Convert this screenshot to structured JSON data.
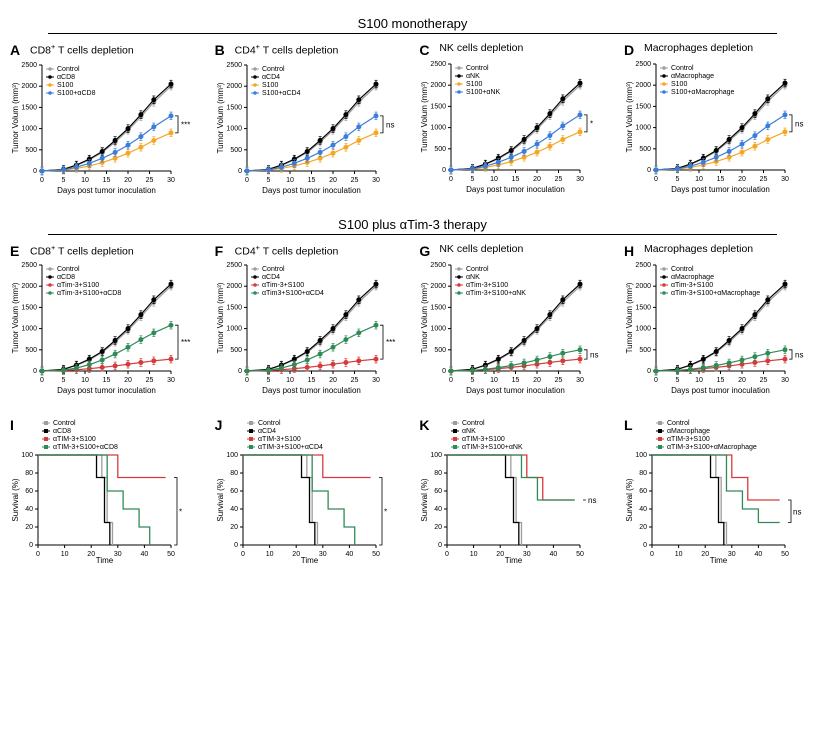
{
  "sections": {
    "top": "S100 monotherapy",
    "mid": "S100 plus αTim-3 therapy"
  },
  "colors": {
    "gray": "#9e9e9e",
    "black": "#000000",
    "orange": "#f5a623",
    "blue": "#3b7dd8",
    "red": "#d63a3a",
    "green": "#2e8b57",
    "bg": "#ffffff",
    "axis": "#000000"
  },
  "tumor_axis": {
    "xlabel": "Days post tumor inoculation",
    "ylabel": "Tumor Volum (mm³)",
    "xlim": [
      0,
      30
    ],
    "xtick_step": 5,
    "ylim": [
      0,
      2500
    ],
    "ytick_step": 500
  },
  "survival_axis": {
    "xlabel": "Time",
    "ylabel": "Survival (%)",
    "xlim": [
      0,
      50
    ],
    "xtick_step": 10,
    "ylim": [
      0,
      100
    ],
    "ytick_step": 20
  },
  "days": [
    0,
    5,
    8,
    11,
    14,
    17,
    20,
    23,
    26,
    30
  ],
  "tumor_curves": {
    "control": [
      0,
      40,
      130,
      260,
      440,
      680,
      960,
      1280,
      1620,
      2000
    ],
    "depl": [
      0,
      40,
      140,
      280,
      460,
      720,
      1000,
      1330,
      1680,
      2050
    ],
    "s100": [
      0,
      20,
      60,
      120,
      200,
      300,
      420,
      560,
      720,
      900
    ],
    "s100_blue": [
      0,
      30,
      90,
      180,
      300,
      440,
      610,
      810,
      1040,
      1300
    ],
    "combo": [
      0,
      10,
      30,
      55,
      85,
      120,
      160,
      200,
      240,
      280
    ],
    "combo_depl_partial": [
      0,
      20,
      70,
      150,
      260,
      400,
      560,
      740,
      900,
      1080
    ],
    "combo_depl_small": [
      0,
      15,
      40,
      80,
      130,
      190,
      260,
      340,
      420,
      500
    ]
  },
  "tumor_err": 90,
  "panels_tumor": [
    {
      "letter": "A",
      "title": "CD8⁺ T cells depletion",
      "legend": [
        [
          "Control",
          "gray"
        ],
        [
          "αCD8",
          "black"
        ],
        [
          "S100",
          "orange"
        ],
        [
          "S100+αCD8",
          "blue"
        ]
      ],
      "series": [
        [
          "control",
          "gray"
        ],
        [
          "depl",
          "black"
        ],
        [
          "s100",
          "orange"
        ],
        [
          "s100_blue",
          "blue"
        ]
      ],
      "sig": "***",
      "sig_pair": [
        2,
        3
      ]
    },
    {
      "letter": "B",
      "title": "CD4⁺ T cells depletion",
      "legend": [
        [
          "Control",
          "gray"
        ],
        [
          "αCD4",
          "black"
        ],
        [
          "S100",
          "orange"
        ],
        [
          "S100+αCD4",
          "blue"
        ]
      ],
      "series": [
        [
          "control",
          "gray"
        ],
        [
          "depl",
          "black"
        ],
        [
          "s100",
          "orange"
        ],
        [
          "s100_blue",
          "blue"
        ]
      ],
      "sig": "ns",
      "sig_pair": [
        2,
        3
      ]
    },
    {
      "letter": "C",
      "title": "NK cells depletion",
      "legend": [
        [
          "Control",
          "gray"
        ],
        [
          "αNK",
          "black"
        ],
        [
          "S100",
          "orange"
        ],
        [
          "S100+αNK",
          "blue"
        ]
      ],
      "series": [
        [
          "control",
          "gray"
        ],
        [
          "depl",
          "black"
        ],
        [
          "s100",
          "orange"
        ],
        [
          "s100_blue",
          "blue"
        ]
      ],
      "sig": "*",
      "sig_pair": [
        2,
        3
      ]
    },
    {
      "letter": "D",
      "title": "Macrophages depletion",
      "legend": [
        [
          "Control",
          "gray"
        ],
        [
          "αMacrophage",
          "black"
        ],
        [
          "S100",
          "orange"
        ],
        [
          "S100+αMacrophage",
          "blue"
        ]
      ],
      "series": [
        [
          "control",
          "gray"
        ],
        [
          "depl",
          "black"
        ],
        [
          "s100",
          "orange"
        ],
        [
          "s100_blue",
          "blue"
        ]
      ],
      "sig": "ns",
      "sig_pair": [
        2,
        3
      ]
    },
    {
      "letter": "E",
      "title": "CD8⁺ T cells depletion",
      "legend": [
        [
          "Control",
          "gray"
        ],
        [
          "αCD8",
          "black"
        ],
        [
          "αTim-3+S100",
          "red"
        ],
        [
          "αTim-3+S100+αCD8",
          "green"
        ]
      ],
      "series": [
        [
          "control",
          "gray"
        ],
        [
          "depl",
          "black"
        ],
        [
          "combo",
          "red"
        ],
        [
          "combo_depl_partial",
          "green"
        ]
      ],
      "sig": "***",
      "sig_pair": [
        2,
        3
      ]
    },
    {
      "letter": "F",
      "title": "CD4⁺ T cells depletion",
      "legend": [
        [
          "Control",
          "gray"
        ],
        [
          "αCD4",
          "black"
        ],
        [
          "αTim-3+S100",
          "red"
        ],
        [
          "αTim3+S100+αCD4",
          "green"
        ]
      ],
      "series": [
        [
          "control",
          "gray"
        ],
        [
          "depl",
          "black"
        ],
        [
          "combo",
          "red"
        ],
        [
          "combo_depl_partial",
          "green"
        ]
      ],
      "sig": "***",
      "sig_pair": [
        2,
        3
      ]
    },
    {
      "letter": "G",
      "title": "NK cells depletion",
      "legend": [
        [
          "Control",
          "gray"
        ],
        [
          "αNK",
          "black"
        ],
        [
          "αTim-3+S100",
          "red"
        ],
        [
          "αTim-3+S100+αNK",
          "green"
        ]
      ],
      "series": [
        [
          "control",
          "gray"
        ],
        [
          "depl",
          "black"
        ],
        [
          "combo",
          "red"
        ],
        [
          "combo_depl_small",
          "green"
        ]
      ],
      "sig": "ns",
      "sig_pair": [
        2,
        3
      ]
    },
    {
      "letter": "H",
      "title": "Macrophages depletion",
      "legend": [
        [
          "Control",
          "gray"
        ],
        [
          "αMacrophage",
          "black"
        ],
        [
          "αTim-3+S100",
          "red"
        ],
        [
          "αTim-3+S100+αMacrophage",
          "green"
        ]
      ],
      "series": [
        [
          "control",
          "gray"
        ],
        [
          "depl",
          "black"
        ],
        [
          "combo",
          "red"
        ],
        [
          "combo_depl_small",
          "green"
        ]
      ],
      "sig": "ns",
      "sig_pair": [
        2,
        3
      ]
    }
  ],
  "panels_survival": [
    {
      "letter": "I",
      "legend": [
        [
          "Control",
          "gray"
        ],
        [
          "αCD8",
          "black"
        ],
        [
          "αTIM-3+S100",
          "red"
        ],
        [
          "αTIM-3+S100+αCD8",
          "green"
        ]
      ],
      "series": {
        "gray": [
          [
            0,
            100
          ],
          [
            24,
            100
          ],
          [
            24,
            75
          ],
          [
            26,
            75
          ],
          [
            26,
            25
          ],
          [
            28,
            25
          ],
          [
            28,
            0
          ]
        ],
        "black": [
          [
            0,
            100
          ],
          [
            22,
            100
          ],
          [
            22,
            75
          ],
          [
            25,
            75
          ],
          [
            25,
            25
          ],
          [
            27,
            25
          ],
          [
            27,
            0
          ]
        ],
        "red": [
          [
            0,
            100
          ],
          [
            30,
            100
          ],
          [
            30,
            75
          ],
          [
            38,
            75
          ],
          [
            38,
            75
          ],
          [
            48,
            75
          ]
        ],
        "green": [
          [
            0,
            100
          ],
          [
            26,
            100
          ],
          [
            26,
            60
          ],
          [
            32,
            60
          ],
          [
            32,
            40
          ],
          [
            38,
            40
          ],
          [
            38,
            20
          ],
          [
            42,
            20
          ],
          [
            42,
            0
          ]
        ]
      },
      "sig": "*",
      "sig_pair": [
        "red",
        "green"
      ]
    },
    {
      "letter": "J",
      "legend": [
        [
          "Control",
          "gray"
        ],
        [
          "αCD4",
          "black"
        ],
        [
          "αTIM-3+S100",
          "red"
        ],
        [
          "αTIM-3+S100+αCD4",
          "green"
        ]
      ],
      "series": {
        "gray": [
          [
            0,
            100
          ],
          [
            24,
            100
          ],
          [
            24,
            75
          ],
          [
            26,
            75
          ],
          [
            26,
            25
          ],
          [
            28,
            25
          ],
          [
            28,
            0
          ]
        ],
        "black": [
          [
            0,
            100
          ],
          [
            22,
            100
          ],
          [
            22,
            75
          ],
          [
            25,
            75
          ],
          [
            25,
            25
          ],
          [
            27,
            25
          ],
          [
            27,
            0
          ]
        ],
        "red": [
          [
            0,
            100
          ],
          [
            30,
            100
          ],
          [
            30,
            75
          ],
          [
            38,
            75
          ],
          [
            38,
            75
          ],
          [
            48,
            75
          ]
        ],
        "green": [
          [
            0,
            100
          ],
          [
            26,
            100
          ],
          [
            26,
            60
          ],
          [
            32,
            60
          ],
          [
            32,
            40
          ],
          [
            38,
            40
          ],
          [
            38,
            20
          ],
          [
            42,
            20
          ],
          [
            42,
            0
          ]
        ]
      },
      "sig": "*",
      "sig_pair": [
        "red",
        "green"
      ]
    },
    {
      "letter": "K",
      "legend": [
        [
          "Control",
          "gray"
        ],
        [
          "αNK",
          "black"
        ],
        [
          "αTIM-3+S100",
          "red"
        ],
        [
          "αTIM-3+S100+αNK",
          "green"
        ]
      ],
      "series": {
        "gray": [
          [
            0,
            100
          ],
          [
            24,
            100
          ],
          [
            24,
            75
          ],
          [
            26,
            75
          ],
          [
            26,
            25
          ],
          [
            28,
            25
          ],
          [
            28,
            0
          ]
        ],
        "black": [
          [
            0,
            100
          ],
          [
            22,
            100
          ],
          [
            22,
            75
          ],
          [
            25,
            75
          ],
          [
            25,
            25
          ],
          [
            27,
            25
          ],
          [
            27,
            0
          ]
        ],
        "red": [
          [
            0,
            100
          ],
          [
            30,
            100
          ],
          [
            30,
            75
          ],
          [
            36,
            75
          ],
          [
            36,
            50
          ],
          [
            48,
            50
          ]
        ],
        "green": [
          [
            0,
            100
          ],
          [
            28,
            100
          ],
          [
            28,
            75
          ],
          [
            34,
            75
          ],
          [
            34,
            50
          ],
          [
            40,
            50
          ],
          [
            40,
            50
          ],
          [
            48,
            50
          ]
        ]
      },
      "sig": "ns",
      "sig_pair": [
        "red",
        "green"
      ]
    },
    {
      "letter": "L",
      "legend": [
        [
          "Control",
          "gray"
        ],
        [
          "αMacrophage",
          "black"
        ],
        [
          "αTIM-3+S100",
          "red"
        ],
        [
          "αTIM-3+S100+αMacrophage",
          "green"
        ]
      ],
      "series": {
        "gray": [
          [
            0,
            100
          ],
          [
            24,
            100
          ],
          [
            24,
            75
          ],
          [
            26,
            75
          ],
          [
            26,
            25
          ],
          [
            28,
            25
          ],
          [
            28,
            0
          ]
        ],
        "black": [
          [
            0,
            100
          ],
          [
            22,
            100
          ],
          [
            22,
            75
          ],
          [
            25,
            75
          ],
          [
            25,
            25
          ],
          [
            27,
            25
          ],
          [
            27,
            0
          ]
        ],
        "red": [
          [
            0,
            100
          ],
          [
            30,
            100
          ],
          [
            30,
            75
          ],
          [
            36,
            75
          ],
          [
            36,
            50
          ],
          [
            48,
            50
          ]
        ],
        "green": [
          [
            0,
            100
          ],
          [
            28,
            100
          ],
          [
            28,
            60
          ],
          [
            34,
            60
          ],
          [
            34,
            40
          ],
          [
            40,
            40
          ],
          [
            40,
            25
          ],
          [
            48,
            25
          ]
        ]
      },
      "sig": "ns",
      "sig_pair": [
        "red",
        "green"
      ]
    }
  ]
}
